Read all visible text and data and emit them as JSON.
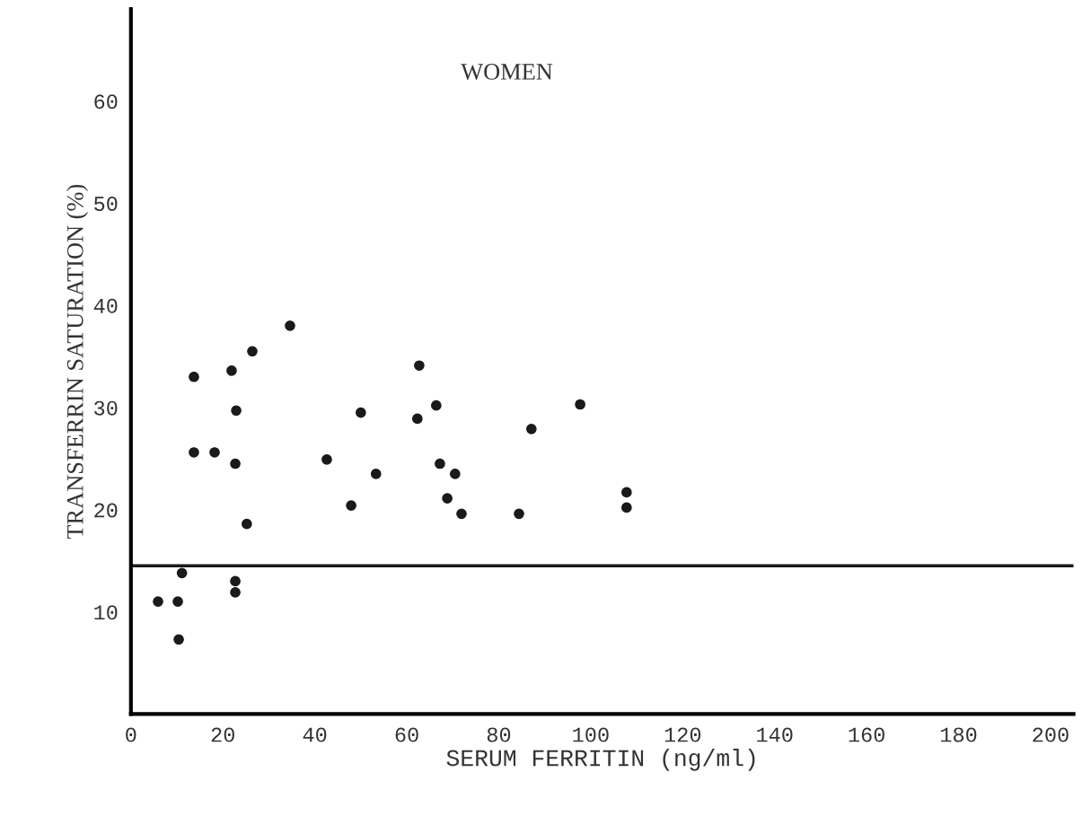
{
  "chart_data": {
    "type": "scatter",
    "title": "WOMEN",
    "xlabel": "SERUM FERRITIN (ng/ml)",
    "ylabel": "TRANSFERRIN SATURATION (%)",
    "x": [
      34.6,
      26.4,
      13.7,
      21.9,
      62.7,
      22.9,
      50.0,
      66.4,
      62.3,
      97.7,
      87.1,
      13.7,
      18.2,
      22.7,
      42.6,
      53.3,
      67.2,
      70.5,
      47.9,
      68.8,
      71.9,
      84.4,
      107.8,
      107.8,
      25.2,
      11.1,
      22.7,
      22.7,
      5.9,
      10.2,
      10.4
    ],
    "series": [
      {
        "color": "#1a1a1a",
        "values": [
          38.0,
          35.5,
          33.0,
          33.6,
          34.1,
          29.7,
          29.5,
          30.2,
          28.9,
          30.3,
          27.9,
          25.6,
          25.6,
          24.5,
          24.9,
          23.5,
          24.5,
          23.5,
          20.4,
          21.1,
          19.6,
          19.6,
          21.7,
          20.2,
          18.6,
          13.8,
          13.0,
          11.9,
          11.0,
          11.0,
          7.3
        ]
      }
    ],
    "xlim": [
      0,
      205
    ],
    "ylim": [
      0,
      69
    ],
    "xticks": [
      0,
      20,
      40,
      60,
      80,
      100,
      120,
      140,
      160,
      180,
      200
    ],
    "yticks": [
      10,
      20,
      30,
      40,
      50,
      60
    ],
    "ref_lines": [
      {
        "axis": "y",
        "value": 14.5,
        "color": "#1a1a1a"
      }
    ],
    "marker": "circle",
    "grid": false,
    "legend": false
  }
}
